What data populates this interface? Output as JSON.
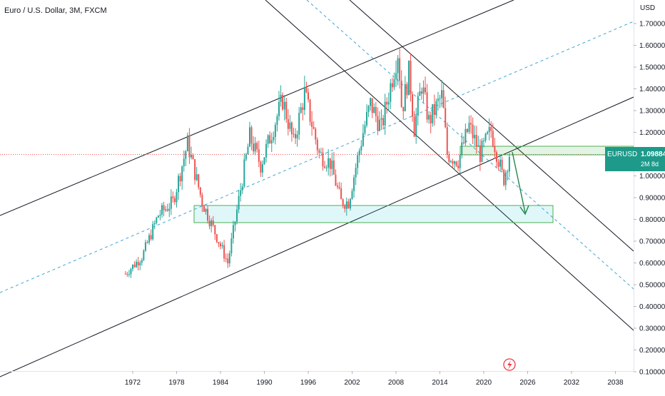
{
  "chart_data": {
    "type": "candlestick",
    "title": "Euro / U.S. Dollar, 3M, FXCM",
    "currency": "USD",
    "price_scale": "log",
    "y_ticks": [
      "1.70000",
      "1.60000",
      "1.50000",
      "1.40000",
      "1.30000",
      "1.20000",
      "1.10000",
      "1.00000",
      "0.90000",
      "0.80000",
      "0.70000",
      "0.60000",
      "0.50000",
      "0.40000",
      "0.30000",
      "0.20000",
      "0.10000"
    ],
    "x_ticks": [
      "1972",
      "1978",
      "1984",
      "1990",
      "1996",
      "2002",
      "2008",
      "2014",
      "2020",
      "2026",
      "2032",
      "2038"
    ],
    "symbol": "EURUSD",
    "last_price": "1.09884",
    "countdown": "2M 8d",
    "up_color": "#26a69a",
    "down_color": "#ef5350",
    "key_points": [
      {
        "date": 1971.0,
        "price": 0.55
      },
      {
        "date": 1973.3,
        "price": 0.63
      },
      {
        "date": 1975.5,
        "price": 0.82
      },
      {
        "date": 1977.5,
        "price": 0.88
      },
      {
        "date": 1979.5,
        "price": 1.15
      },
      {
        "date": 1981.5,
        "price": 0.88
      },
      {
        "date": 1983.5,
        "price": 0.72
      },
      {
        "date": 1985.0,
        "price": 0.6
      },
      {
        "date": 1988.0,
        "price": 1.18
      },
      {
        "date": 1989.5,
        "price": 1.05
      },
      {
        "date": 1992.5,
        "price": 1.35
      },
      {
        "date": 1994.0,
        "price": 1.15
      },
      {
        "date": 1995.5,
        "price": 1.38
      },
      {
        "date": 1997.5,
        "price": 1.1
      },
      {
        "date": 1999.0,
        "price": 1.06
      },
      {
        "date": 2000.5,
        "price": 0.88
      },
      {
        "date": 2001.5,
        "price": 0.88
      },
      {
        "date": 2003.5,
        "price": 1.2
      },
      {
        "date": 2004.5,
        "price": 1.33
      },
      {
        "date": 2006.0,
        "price": 1.22
      },
      {
        "date": 2008.3,
        "price": 1.58
      },
      {
        "date": 2008.8,
        "price": 1.3
      },
      {
        "date": 2009.8,
        "price": 1.48
      },
      {
        "date": 2010.5,
        "price": 1.22
      },
      {
        "date": 2011.5,
        "price": 1.42
      },
      {
        "date": 2012.5,
        "price": 1.25
      },
      {
        "date": 2014.3,
        "price": 1.37
      },
      {
        "date": 2015.0,
        "price": 1.1
      },
      {
        "date": 2016.5,
        "price": 1.07
      },
      {
        "date": 2018.0,
        "price": 1.23
      },
      {
        "date": 2019.5,
        "price": 1.1
      },
      {
        "date": 2021.0,
        "price": 1.21
      },
      {
        "date": 2022.7,
        "price": 0.98
      },
      {
        "date": 2023.5,
        "price": 1.1
      }
    ]
  }
}
